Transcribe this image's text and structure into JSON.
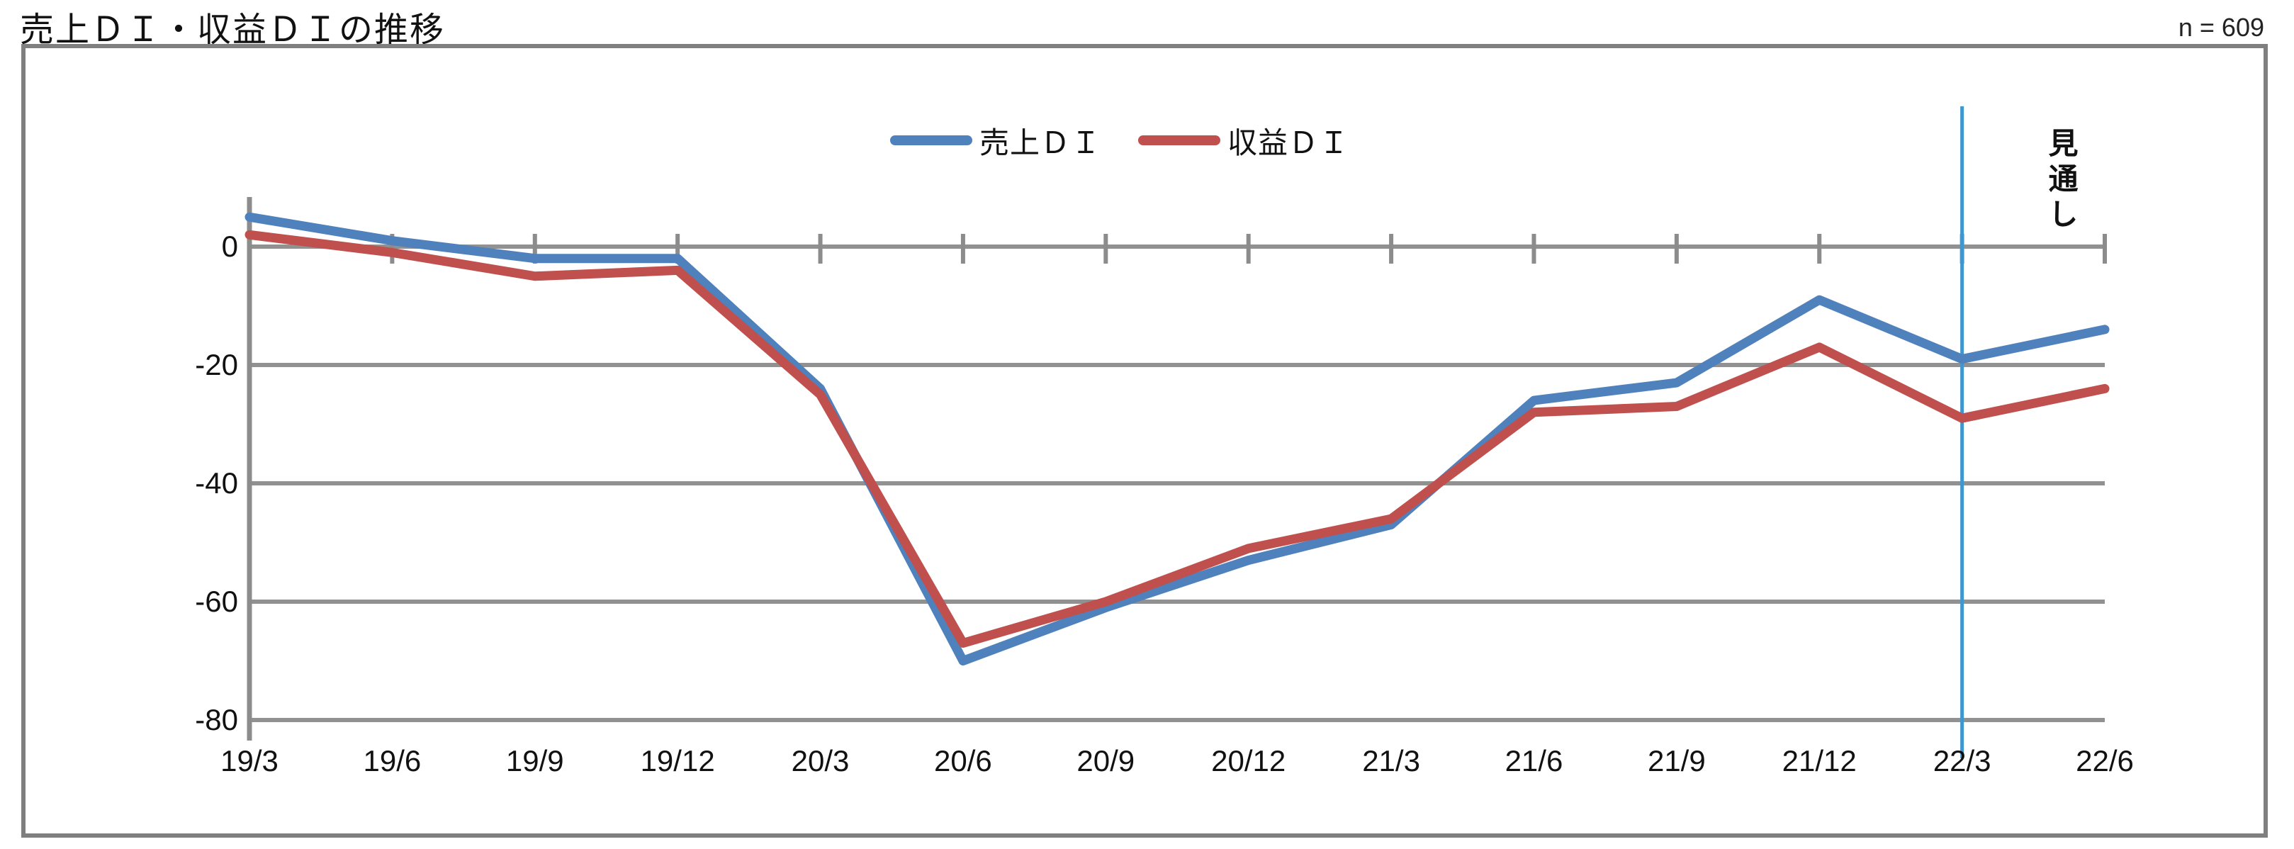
{
  "title": "売上ＤＩ・収益ＤＩの推移",
  "sample_note": "n = 609",
  "forecast_label": "見通し",
  "legend": [
    {
      "label": "売上ＤＩ",
      "color": "#4f81bd"
    },
    {
      "label": "収益ＤＩ",
      "color": "#c0504d"
    }
  ],
  "chart_data": {
    "type": "line",
    "title": "売上ＤＩ・収益ＤＩの推移",
    "categories": [
      "19/3",
      "19/6",
      "19/9",
      "19/12",
      "20/3",
      "20/6",
      "20/9",
      "20/12",
      "21/3",
      "21/6",
      "21/9",
      "21/12",
      "22/3",
      "22/6"
    ],
    "series": [
      {
        "name": "売上ＤＩ",
        "color": "#4f81bd",
        "values": [
          5,
          1,
          -2,
          -2,
          -24,
          -70,
          -61,
          -53,
          -47,
          -26,
          -23,
          -9,
          -19,
          -14
        ]
      },
      {
        "name": "収益ＤＩ",
        "color": "#c0504d",
        "values": [
          2,
          -1,
          -5,
          -4,
          -25,
          -67,
          -60,
          -51,
          -46,
          -28,
          -27,
          -17,
          -29,
          -24
        ]
      }
    ],
    "y_ticks": [
      0,
      -20,
      -40,
      -60,
      -80
    ],
    "ylim": [
      -80,
      8
    ],
    "grid": true,
    "legend_position": "top-center",
    "forecast_line_category": "22/3",
    "forecast_line_color": "#3e97cf",
    "gridline_color": "#919191",
    "axis_color": "#8c8c8c",
    "frame_color": "#7f7f7f"
  }
}
